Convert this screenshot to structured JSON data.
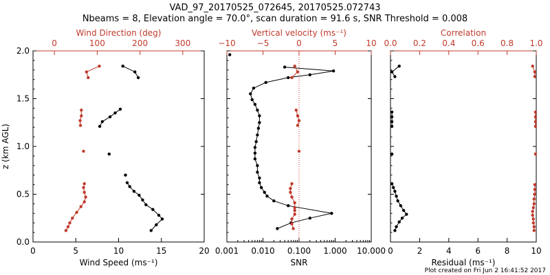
{
  "title": {
    "line1": "VAD_97_20170525_072645, 20170525.072743",
    "line2": "Nbeams = 8, Elevation angle = 70.0°, scan duration = 91.6 s, SNR Threshold = 0.008"
  },
  "footer": "Plot created on Fri Jun  2 16:41:52 2017",
  "colors": {
    "red": "#c0392b",
    "black": "#000000"
  },
  "chart_data": [
    {
      "type": "scatter",
      "panel": "wind",
      "ylabel": "z (km AGL)",
      "ylim": [
        0,
        2
      ],
      "yticks": [
        "0.0",
        "0.5",
        "1.0",
        "1.5",
        "2.0"
      ],
      "xlabel_bottom": "Wind Speed (ms⁻¹)",
      "xlim_bottom": [
        0,
        20
      ],
      "xticks_bottom": [
        "0",
        "5",
        "10",
        "15",
        "20"
      ],
      "xlabel_top": "Wind Direction (deg)",
      "xlim_top": [
        -50,
        350
      ],
      "xticks_top": [
        "0",
        "100",
        "200",
        "300"
      ],
      "series": [
        {
          "color": "red",
          "axis": "top",
          "segments": [
            [
              [
                27,
                0.12
              ],
              [
                32,
                0.16
              ],
              [
                36,
                0.2
              ],
              [
                42,
                0.25
              ],
              [
                52,
                0.31
              ],
              [
                62,
                0.37
              ],
              [
                70,
                0.42
              ],
              [
                73,
                0.47
              ],
              [
                70,
                0.52
              ],
              [
                68,
                0.57
              ],
              [
                70,
                0.61
              ]
            ],
            [
              [
                68,
                0.95
              ]
            ],
            [
              [
                61,
                1.22
              ],
              [
                60,
                1.27
              ],
              [
                63,
                1.32
              ],
              [
                63,
                1.38
              ]
            ],
            [
              [
                79,
                1.72
              ],
              [
                75,
                1.78
              ],
              [
                105,
                1.84
              ]
            ]
          ]
        },
        {
          "color": "black",
          "axis": "bottom",
          "segments": [
            [
              [
                13.8,
                0.12
              ],
              [
                14.4,
                0.18
              ],
              [
                15.1,
                0.24
              ],
              [
                14.7,
                0.28
              ],
              [
                14.0,
                0.34
              ],
              [
                13.2,
                0.39
              ],
              [
                12.8,
                0.44
              ],
              [
                12.4,
                0.49
              ],
              [
                11.8,
                0.53
              ],
              [
                11.3,
                0.58
              ],
              [
                11.0,
                0.62
              ]
            ],
            [
              [
                10.8,
                0.7
              ]
            ],
            [
              [
                8.9,
                0.92
              ]
            ],
            [
              [
                7.8,
                1.21
              ],
              [
                8.1,
                1.26
              ],
              [
                9.0,
                1.31
              ],
              [
                9.6,
                1.35
              ],
              [
                10.2,
                1.39
              ]
            ],
            [
              [
                12.3,
                1.72
              ],
              [
                11.9,
                1.78
              ],
              [
                10.5,
                1.84
              ]
            ]
          ]
        }
      ]
    },
    {
      "type": "scatter",
      "panel": "snr",
      "ylim": [
        0,
        2
      ],
      "xscale": "log",
      "xlabel_bottom": "SNR",
      "xlim_bottom": [
        0.001,
        10
      ],
      "xticks_bottom": [
        "0.001",
        "0.010",
        "0.100",
        "1.000",
        "10.000"
      ],
      "xlabel_top": "Vertical velocity (ms⁻¹)",
      "xlim_top": [
        -10,
        10
      ],
      "xticks_top": [
        "−10",
        "−5",
        "0",
        "5",
        "10"
      ],
      "zero_line": {
        "axis": "top",
        "x": 0,
        "color": "red",
        "style": "dotted"
      },
      "series": [
        {
          "color": "black",
          "axis": "bottom",
          "segments": [
            [
              [
                0.025,
                0.14
              ],
              [
                0.06,
                0.2
              ],
              [
                0.2,
                0.25
              ],
              [
                0.8,
                0.3
              ],
              [
                0.05,
                0.38
              ],
              [
                0.02,
                0.43
              ],
              [
                0.013,
                0.48
              ],
              [
                0.011,
                0.52
              ],
              [
                0.009,
                0.57
              ],
              [
                0.008,
                0.62
              ],
              [
                0.008,
                0.67
              ],
              [
                0.007,
                0.73
              ],
              [
                0.007,
                0.8
              ],
              [
                0.006,
                0.87
              ],
              [
                0.006,
                0.93
              ],
              [
                0.006,
                0.99
              ],
              [
                0.0065,
                1.05
              ],
              [
                0.007,
                1.12
              ],
              [
                0.0075,
                1.19
              ],
              [
                0.008,
                1.25
              ],
              [
                0.008,
                1.32
              ],
              [
                0.007,
                1.38
              ],
              [
                0.006,
                1.44
              ],
              [
                0.005,
                1.49
              ],
              [
                0.0045,
                1.55
              ],
              [
                0.0055,
                1.61
              ],
              [
                0.012,
                1.67
              ],
              [
                0.05,
                1.72
              ],
              [
                0.2,
                1.75
              ],
              [
                0.9,
                1.79
              ],
              [
                0.04,
                1.83
              ]
            ],
            [
              [
                0.0012,
                1.96
              ]
            ]
          ]
        },
        {
          "color": "red",
          "axis": "top",
          "segments": [
            [
              [
                -0.8,
                0.14
              ],
              [
                -1.0,
                0.19
              ],
              [
                -1.0,
                0.24
              ],
              [
                -0.6,
                0.29
              ],
              [
                -0.6,
                0.33
              ],
              [
                -0.6,
                0.36
              ],
              [
                -0.6,
                0.41
              ],
              [
                -1.0,
                0.47
              ],
              [
                -1.2,
                0.52
              ],
              [
                -1.2,
                0.56
              ],
              [
                -1.0,
                0.61
              ]
            ],
            [
              [
                0.0,
                0.95
              ]
            ],
            [
              [
                -0.2,
                1.22
              ],
              [
                0.0,
                1.27
              ],
              [
                -0.2,
                1.32
              ],
              [
                -0.4,
                1.38
              ]
            ],
            [
              [
                -1.0,
                1.72
              ],
              [
                -0.2,
                1.78
              ],
              [
                -0.6,
                1.84
              ]
            ]
          ]
        }
      ]
    },
    {
      "type": "scatter",
      "panel": "residual",
      "ylim": [
        0,
        2
      ],
      "xlabel_bottom": "Residual (ms⁻¹)",
      "xlim_bottom": [
        0,
        10
      ],
      "xticks_bottom": [
        "0",
        "2",
        "4",
        "6",
        "8",
        "10"
      ],
      "xlabel_top": "Correlation",
      "xlim_top": [
        0,
        1
      ],
      "xticks_top": [
        "0.0",
        "0.2",
        "0.4",
        "0.6",
        "0.8",
        "1.0"
      ],
      "series": [
        {
          "color": "black",
          "axis": "bottom",
          "segments": [
            [
              [
                0.3,
                0.12
              ],
              [
                0.4,
                0.16
              ],
              [
                0.6,
                0.21
              ],
              [
                0.8,
                0.25
              ],
              [
                1.1,
                0.29
              ],
              [
                0.9,
                0.33
              ],
              [
                0.7,
                0.38
              ],
              [
                0.5,
                0.43
              ],
              [
                0.4,
                0.48
              ],
              [
                0.3,
                0.53
              ],
              [
                0.2,
                0.57
              ],
              [
                0.1,
                0.61
              ]
            ],
            [
              [
                0.1,
                0.92
              ]
            ],
            [
              [
                0.1,
                1.21
              ],
              [
                0.1,
                1.26
              ],
              [
                0.1,
                1.31
              ],
              [
                0.1,
                1.36
              ]
            ],
            [
              [
                0.3,
                1.73
              ],
              [
                0.1,
                1.78
              ],
              [
                0.6,
                1.84
              ]
            ]
          ]
        },
        {
          "color": "red",
          "axis": "top",
          "segments": [
            [
              [
                0.985,
                0.12
              ],
              [
                0.985,
                0.16
              ],
              [
                0.98,
                0.2
              ],
              [
                0.98,
                0.24
              ],
              [
                0.975,
                0.28
              ],
              [
                0.975,
                0.32
              ],
              [
                0.98,
                0.36
              ],
              [
                0.985,
                0.4
              ],
              [
                0.985,
                0.45
              ],
              [
                0.99,
                0.5
              ],
              [
                0.99,
                0.55
              ],
              [
                0.99,
                0.6
              ]
            ],
            [
              [
                0.995,
                0.92
              ]
            ],
            [
              [
                0.995,
                1.21
              ],
              [
                0.995,
                1.26
              ],
              [
                0.995,
                1.31
              ],
              [
                0.995,
                1.36
              ]
            ],
            [
              [
                0.99,
                1.73
              ],
              [
                0.99,
                1.78
              ],
              [
                0.975,
                1.84
              ]
            ]
          ]
        }
      ]
    }
  ]
}
